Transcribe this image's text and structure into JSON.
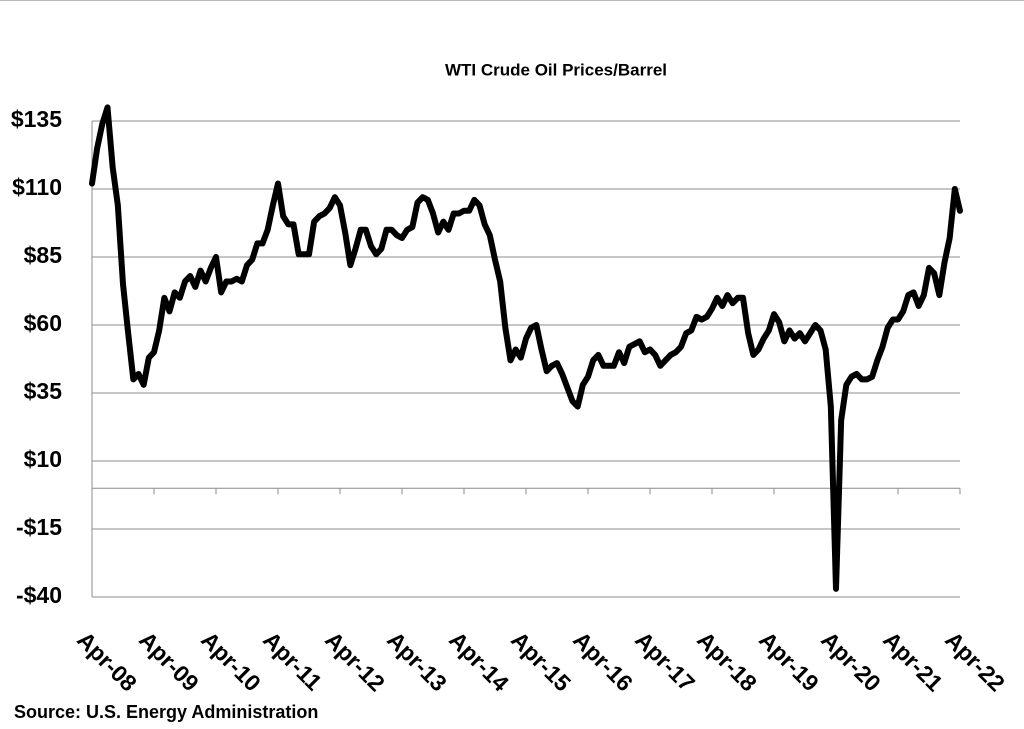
{
  "chart_data": {
    "type": "line",
    "title": "WTI Crude Oil Prices/Barrel",
    "source": "Source: U.S. Energy Administration",
    "color": "#000000",
    "x": [
      "Apr-08",
      "May-08",
      "Jun-08",
      "Jul-08",
      "Aug-08",
      "Sep-08",
      "Oct-08",
      "Nov-08",
      "Dec-08",
      "Jan-09",
      "Feb-09",
      "Mar-09",
      "Apr-09",
      "May-09",
      "Jun-09",
      "Jul-09",
      "Aug-09",
      "Sep-09",
      "Oct-09",
      "Nov-09",
      "Dec-09",
      "Jan-10",
      "Feb-10",
      "Mar-10",
      "Apr-10",
      "May-10",
      "Jun-10",
      "Jul-10",
      "Aug-10",
      "Sep-10",
      "Oct-10",
      "Nov-10",
      "Dec-10",
      "Jan-11",
      "Feb-11",
      "Mar-11",
      "Apr-11",
      "May-11",
      "Jun-11",
      "Jul-11",
      "Aug-11",
      "Sep-11",
      "Oct-11",
      "Nov-11",
      "Dec-11",
      "Jan-12",
      "Feb-12",
      "Mar-12",
      "Apr-12",
      "May-12",
      "Jun-12",
      "Jul-12",
      "Aug-12",
      "Sep-12",
      "Oct-12",
      "Nov-12",
      "Dec-12",
      "Jan-13",
      "Feb-13",
      "Mar-13",
      "Apr-13",
      "May-13",
      "Jun-13",
      "Jul-13",
      "Aug-13",
      "Sep-13",
      "Oct-13",
      "Nov-13",
      "Dec-13",
      "Jan-14",
      "Feb-14",
      "Mar-14",
      "Apr-14",
      "May-14",
      "Jun-14",
      "Jul-14",
      "Aug-14",
      "Sep-14",
      "Oct-14",
      "Nov-14",
      "Dec-14",
      "Jan-15",
      "Feb-15",
      "Mar-15",
      "Apr-15",
      "May-15",
      "Jun-15",
      "Jul-15",
      "Aug-15",
      "Sep-15",
      "Oct-15",
      "Nov-15",
      "Dec-15",
      "Jan-16",
      "Feb-16",
      "Mar-16",
      "Apr-16",
      "May-16",
      "Jun-16",
      "Jul-16",
      "Aug-16",
      "Sep-16",
      "Oct-16",
      "Nov-16",
      "Dec-16",
      "Jan-17",
      "Feb-17",
      "Mar-17",
      "Apr-17",
      "May-17",
      "Jun-17",
      "Jul-17",
      "Aug-17",
      "Sep-17",
      "Oct-17",
      "Nov-17",
      "Dec-17",
      "Jan-18",
      "Feb-18",
      "Mar-18",
      "Apr-18",
      "May-18",
      "Jun-18",
      "Jul-18",
      "Aug-18",
      "Sep-18",
      "Oct-18",
      "Nov-18",
      "Dec-18",
      "Jan-19",
      "Feb-19",
      "Mar-19",
      "Apr-19",
      "May-19",
      "Jun-19",
      "Jul-19",
      "Aug-19",
      "Sep-19",
      "Oct-19",
      "Nov-19",
      "Dec-19",
      "Jan-20",
      "Feb-20",
      "Mar-20",
      "Apr-20",
      "May-20",
      "Jun-20",
      "Jul-20",
      "Aug-20",
      "Sep-20",
      "Oct-20",
      "Nov-20",
      "Dec-20",
      "Jan-21",
      "Feb-21",
      "Mar-21",
      "Apr-21",
      "May-21",
      "Jun-21",
      "Jul-21",
      "Aug-21",
      "Sep-21",
      "Oct-21",
      "Nov-21",
      "Dec-21",
      "Jan-22",
      "Feb-22",
      "Mar-22",
      "Apr-22"
    ],
    "values": [
      112,
      125,
      134,
      140,
      118,
      104,
      75,
      57,
      40,
      42,
      38,
      48,
      50,
      58,
      70,
      65,
      72,
      70,
      76,
      78,
      74,
      80,
      76,
      81,
      85,
      72,
      76,
      76,
      77,
      76,
      82,
      84,
      90,
      90,
      95,
      104,
      112,
      100,
      97,
      97,
      86,
      86,
      86,
      98,
      100,
      101,
      103,
      107,
      104,
      94,
      82,
      88,
      95,
      95,
      89,
      86,
      88,
      95,
      95,
      93,
      92,
      95,
      96,
      105,
      107,
      106,
      101,
      94,
      98,
      95,
      101,
      101,
      102,
      102,
      106,
      104,
      97,
      93,
      84,
      76,
      59,
      47,
      51,
      48,
      55,
      59,
      60,
      51,
      43,
      45,
      46,
      42,
      37,
      32,
      30,
      38,
      41,
      47,
      49,
      45,
      45,
      45,
      50,
      46,
      52,
      53,
      54,
      50,
      51,
      49,
      45,
      47,
      49,
      50,
      52,
      57,
      58,
      63,
      62,
      63,
      66,
      70,
      67,
      71,
      68,
      70,
      70,
      57,
      49,
      51,
      55,
      58,
      64,
      61,
      54,
      58,
      55,
      57,
      54,
      57,
      60,
      58,
      51,
      30,
      -37,
      25,
      38,
      41,
      42,
      40,
      40,
      41,
      47,
      52,
      59,
      62,
      62,
      65,
      71,
      72,
      67,
      71,
      81,
      79,
      71,
      83,
      92,
      110,
      102
    ],
    "xticks": [
      "Apr-08",
      "Apr-09",
      "Apr-10",
      "Apr-11",
      "Apr-12",
      "Apr-13",
      "Apr-14",
      "Apr-15",
      "Apr-16",
      "Apr-17",
      "Apr-18",
      "Apr-19",
      "Apr-20",
      "Apr-21",
      "Apr-22"
    ],
    "ylim": [
      -40,
      145
    ],
    "yticks": [
      {
        "value": -40,
        "label": "-$40"
      },
      {
        "value": -15,
        "label": "-$15"
      },
      {
        "value": 10,
        "label": "$10"
      },
      {
        "value": 35,
        "label": "$35"
      },
      {
        "value": 60,
        "label": "$60"
      },
      {
        "value": 85,
        "label": "$85"
      },
      {
        "value": 110,
        "label": "$110"
      },
      {
        "value": 135,
        "label": "$135"
      }
    ],
    "grid": true
  }
}
